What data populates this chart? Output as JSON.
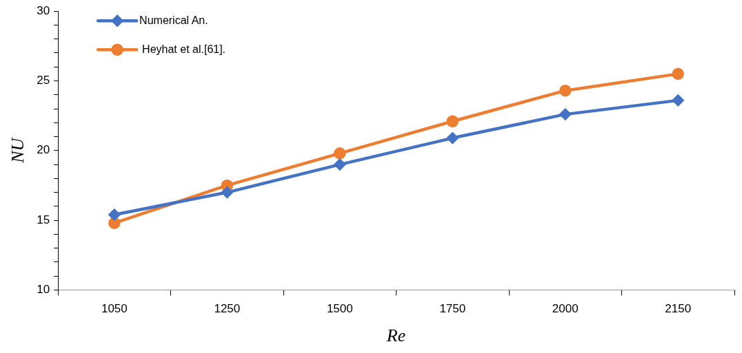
{
  "chart_data": {
    "type": "line",
    "xlabel": "Re",
    "ylabel": "NU",
    "categories": [
      "1050",
      "1250",
      "1500",
      "1750",
      "2000",
      "2150"
    ],
    "series": [
      {
        "name": "Numerical An.",
        "color": "#4472c4",
        "marker": "diamond",
        "values": [
          15.4,
          17.0,
          19.0,
          20.9,
          22.6,
          23.6
        ]
      },
      {
        "name": "Heyhat et al.[61].",
        "color": "#ed7d31",
        "marker": "circle",
        "values": [
          14.8,
          17.5,
          19.8,
          22.1,
          24.3,
          25.5
        ]
      }
    ],
    "ylim": [
      10,
      30
    ],
    "yticks": [
      10,
      {
        "value": 11,
        "label": null
      },
      {
        "value": 12,
        "label": null
      },
      {
        "value": 13,
        "label": null
      },
      {
        "value": 14,
        "label": null
      },
      15,
      {
        "value": 16,
        "label": null
      },
      {
        "value": 17,
        "label": null
      },
      {
        "value": 18,
        "label": null
      },
      {
        "value": 19,
        "label": null
      },
      20,
      {
        "value": 21,
        "label": null
      },
      {
        "value": 22,
        "label": null
      },
      {
        "value": 23,
        "label": null
      },
      {
        "value": 24,
        "label": null
      },
      25,
      {
        "value": 26,
        "label": null
      },
      {
        "value": 27,
        "label": null
      },
      {
        "value": 28,
        "label": null
      },
      {
        "value": 29,
        "label": null
      },
      30
    ],
    "grid": false,
    "legend": "top left",
    "line_style": "solid"
  }
}
